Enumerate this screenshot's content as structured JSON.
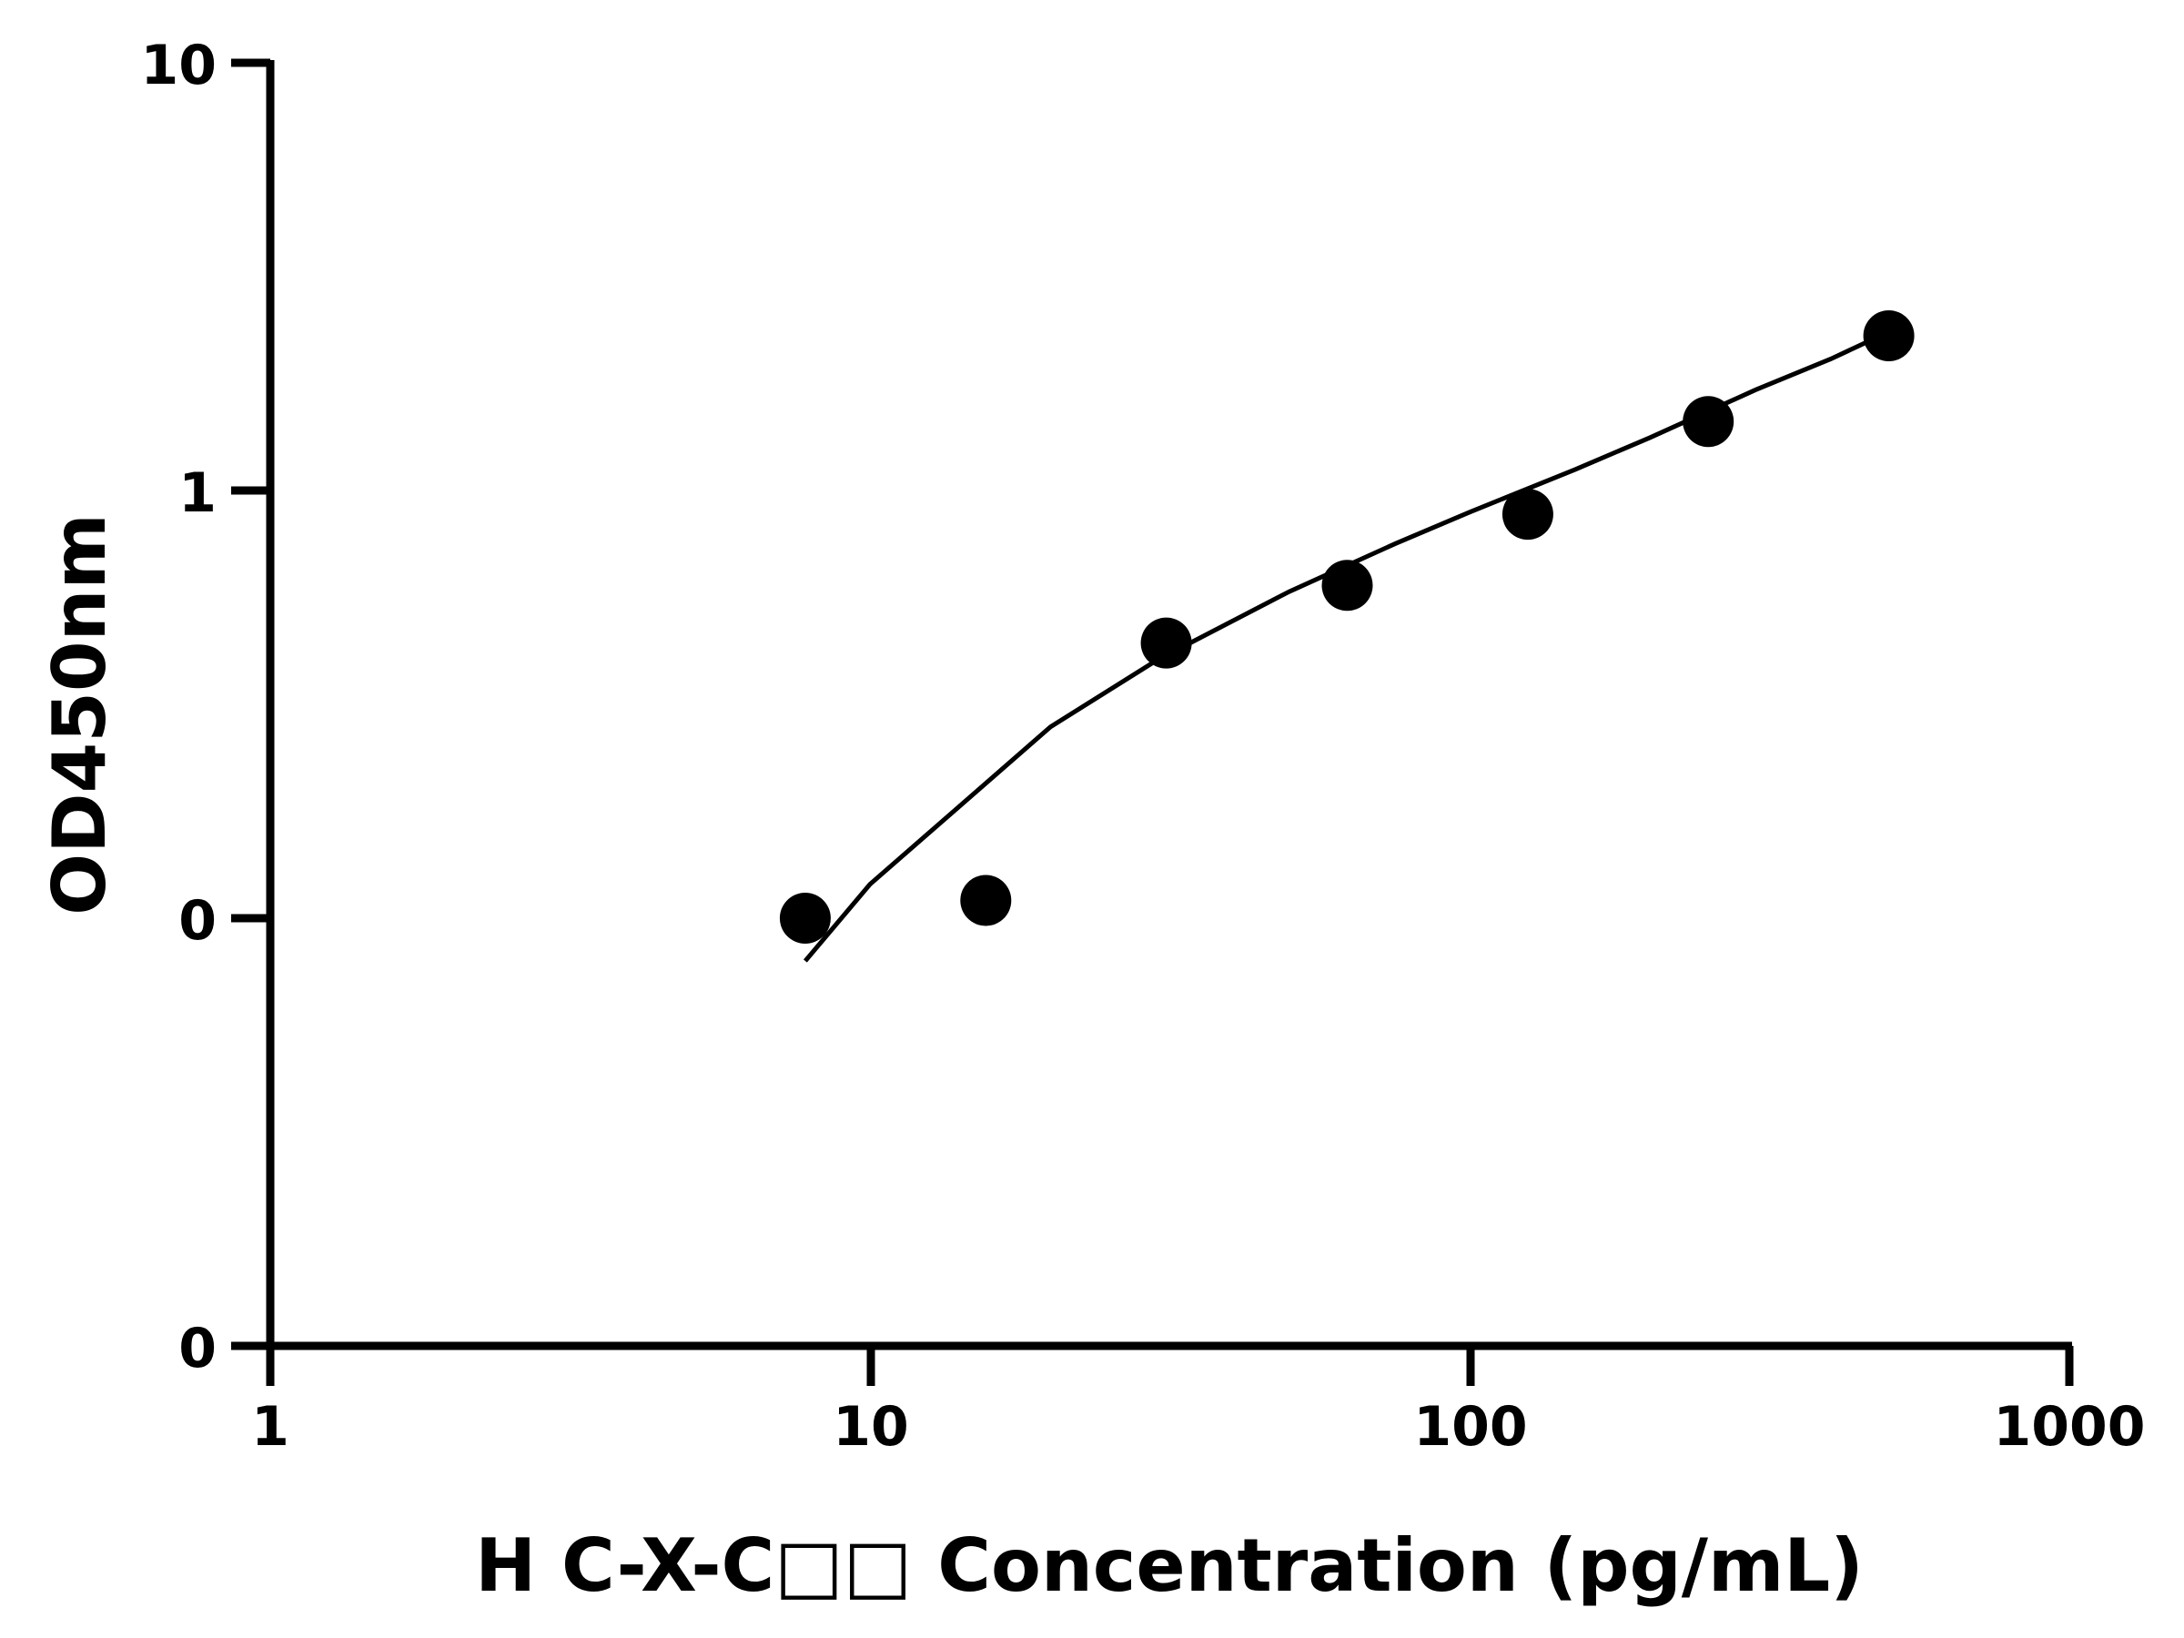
{
  "chart_data": {
    "type": "scatter",
    "xlabel": "H C-X-C□□ Concentration (pg/mL)",
    "ylabel": "OD450nm",
    "x_scale": "log",
    "xlim": [
      1,
      1000
    ],
    "x_ticks": [
      "1",
      "10",
      "100",
      "1000"
    ],
    "y_ticks": [
      "0",
      "0",
      "1",
      "10"
    ],
    "grid": false,
    "series": [
      {
        "type": "scatter",
        "x": [
          7.8,
          15.6,
          31.2,
          62.5,
          125,
          250,
          500
        ],
        "y": [
          0.1,
          0.11,
          0.44,
          0.6,
          0.88,
          1.45,
          2.3
        ]
      },
      {
        "type": "line",
        "x": [
          7.8,
          10,
          20,
          30,
          50,
          75,
          100,
          150,
          200,
          300,
          400,
          500
        ],
        "y": [
          0.09,
          0.12,
          0.28,
          0.4,
          0.58,
          0.75,
          0.89,
          1.12,
          1.33,
          1.72,
          2.03,
          2.35
        ]
      }
    ],
    "colors": {
      "axis": "#000000",
      "points": "#000000",
      "curve": "#000000"
    }
  }
}
